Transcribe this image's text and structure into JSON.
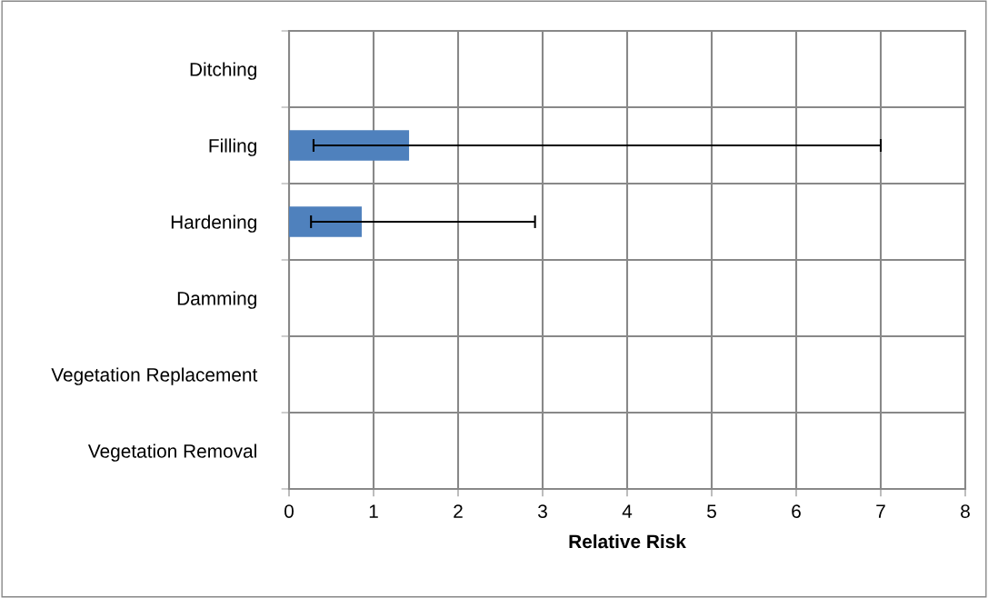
{
  "chart_data": {
    "type": "bar",
    "orientation": "horizontal",
    "xlabel": "Relative Risk",
    "categories": [
      "Ditching",
      "Filling",
      "Hardening",
      "Damming",
      "Vegetation Replacement",
      "Vegetation Removal"
    ],
    "values": [
      null,
      1.42,
      0.86,
      null,
      null,
      null
    ],
    "errors": [
      null,
      [
        0.29,
        7.0
      ],
      [
        0.26,
        2.91
      ],
      null,
      null,
      null
    ],
    "color": "#4f81bd",
    "xlim": [
      0,
      8
    ],
    "xticks": [
      0,
      1,
      2,
      3,
      4,
      5,
      6,
      7,
      8
    ],
    "grid": true,
    "legend": false
  }
}
